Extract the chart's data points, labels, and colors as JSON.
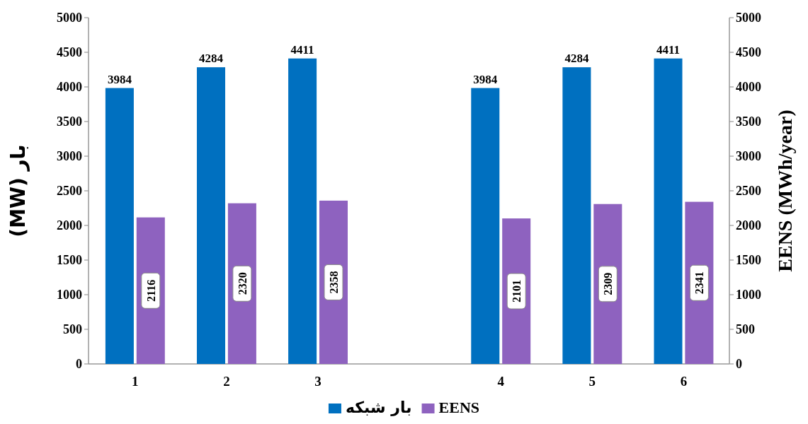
{
  "chart_data": {
    "type": "bar",
    "categories": [
      "1",
      "2",
      "3",
      null,
      "4",
      "5",
      "6"
    ],
    "series": [
      {
        "name": "بار شبکه",
        "color": "#0070c0",
        "values": [
          3984,
          4284,
          4411,
          null,
          3984,
          4284,
          4411
        ]
      },
      {
        "name": "EENS",
        "color": "#8e62bf",
        "axis": "y2",
        "values": [
          2116,
          2320,
          2358,
          null,
          2101,
          2309,
          2341
        ]
      }
    ],
    "ylabel": "بار (MW)",
    "y2label": "EENS (MWh/year)",
    "ylim": [
      0,
      5000
    ],
    "yticks": [
      0,
      500,
      1000,
      1500,
      2000,
      2500,
      3000,
      3500,
      4000,
      4500,
      5000
    ],
    "y2lim": [
      0,
      5000
    ],
    "y2ticks": [
      0,
      500,
      1000,
      1500,
      2000,
      2500,
      3000,
      3500,
      4000,
      4500,
      5000
    ],
    "data_labels": true,
    "legend": "bottom"
  }
}
